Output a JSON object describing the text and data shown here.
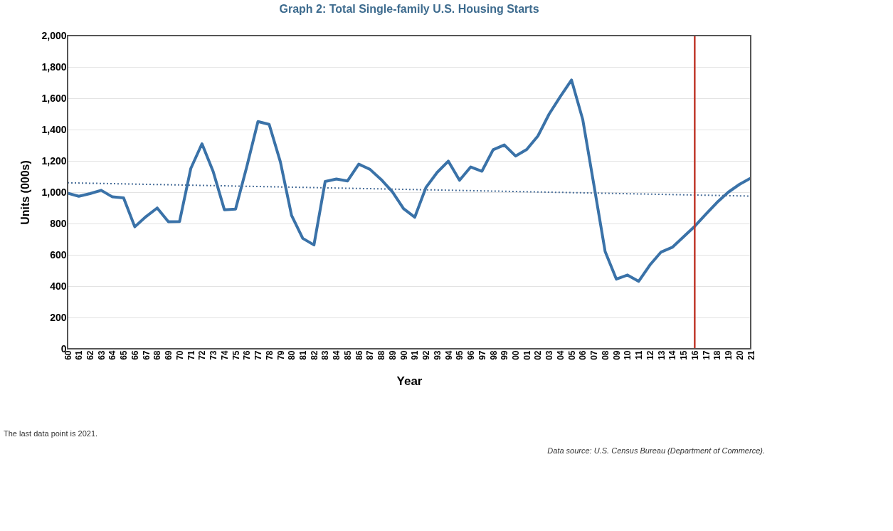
{
  "chart_data": {
    "type": "line",
    "title": "Graph 2: Total Single-family U.S. Housing Starts",
    "xlabel": "Year",
    "ylabel": "Units (000s)",
    "categories": [
      "60",
      "61",
      "62",
      "63",
      "64",
      "65",
      "66",
      "67",
      "68",
      "69",
      "70",
      "71",
      "72",
      "73",
      "74",
      "75",
      "76",
      "77",
      "78",
      "79",
      "80",
      "81",
      "82",
      "83",
      "84",
      "85",
      "86",
      "87",
      "88",
      "89",
      "90",
      "91",
      "92",
      "93",
      "94",
      "95",
      "96",
      "97",
      "98",
      "99",
      "00",
      "01",
      "02",
      "03",
      "04",
      "05",
      "06",
      "07",
      "08",
      "09",
      "10",
      "11",
      "12",
      "13",
      "14",
      "15",
      "16",
      "17",
      "18",
      "19",
      "20",
      "21"
    ],
    "series": [
      {
        "color": "#3a72a8",
        "line_style": "solid",
        "values": [
          994,
          974,
          991,
          1012,
          970,
          964,
          779,
          844,
          899,
          811,
          813,
          1151,
          1309,
          1132,
          888,
          892,
          1162,
          1451,
          1433,
          1194,
          852,
          705,
          663,
          1068,
          1084,
          1072,
          1179,
          1146,
          1081,
          1003,
          895,
          840,
          1030,
          1126,
          1198,
          1076,
          1161,
          1134,
          1271,
          1302,
          1231,
          1273,
          1359,
          1499,
          1611,
          1716,
          1465,
          1046,
          622,
          445,
          471,
          431,
          535,
          618,
          648,
          715,
          782,
          860,
          935,
          1000,
          1050,
          1090
        ]
      },
      {
        "type": "line",
        "color": "#4a6f9a",
        "line_style": "dotted",
        "x": [
          "60",
          "21"
        ],
        "values": [
          1060,
          975
        ]
      }
    ],
    "ylim": [
      0,
      2000
    ],
    "yticks": [
      {
        "value": 0,
        "label": "0"
      },
      {
        "value": 200,
        "label": "200"
      },
      {
        "value": 400,
        "label": "400"
      },
      {
        "value": 600,
        "label": "600"
      },
      {
        "value": 800,
        "label": "800"
      },
      {
        "value": 1000,
        "label": "1,000"
      },
      {
        "value": 1200,
        "label": "1,200"
      },
      {
        "value": 1400,
        "label": "1,400"
      },
      {
        "value": 1600,
        "label": "1,600"
      },
      {
        "value": 1800,
        "label": "1,800"
      },
      {
        "value": 2000,
        "label": "2,000"
      }
    ],
    "grid": "y",
    "marker": "none",
    "ref_lines": [
      {
        "axis": "x",
        "value": "16",
        "color": "#c0392b"
      }
    ],
    "annotations": [
      "The last data point is 2021.",
      "Data source: U.S. Census Bureau (Department of Commerce)."
    ]
  }
}
